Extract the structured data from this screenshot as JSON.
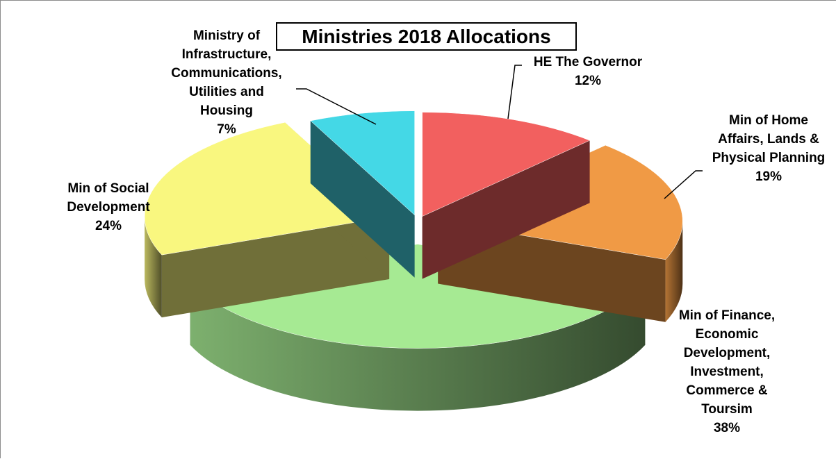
{
  "chart_data": {
    "type": "pie",
    "title": "Ministries 2018 Allocations",
    "slices": [
      {
        "key": "governor",
        "label": "HE The Governor",
        "value": 12,
        "percent_text": "12%",
        "color": "#f2605f"
      },
      {
        "key": "home",
        "label": "Min of Home Affairs, Lands & Physical Planning",
        "value": 19,
        "percent_text": "19%",
        "color": "#f09a45"
      },
      {
        "key": "finance",
        "label": "Min of Finance, Economic Development, Investment, Commerce & Toursim",
        "value": 38,
        "percent_text": "38%",
        "color": "#a6ea93"
      },
      {
        "key": "social",
        "label": "Min of Social Development",
        "value": 24,
        "percent_text": "24%",
        "color": "#f9f77f"
      },
      {
        "key": "infra",
        "label": "Ministry of Infrastructure, Communications, Utilities and Housing",
        "value": 7,
        "percent_text": "7%",
        "color": "#44d8e6"
      }
    ]
  },
  "labels": {
    "governor": [
      "HE The Governor",
      "12%"
    ],
    "home": [
      "Min of Home",
      "Affairs, Lands &",
      "Physical Planning",
      "19%"
    ],
    "finance": [
      "Min of Finance,",
      "Economic",
      "Development,",
      "Investment,",
      "Commerce &",
      "Toursim",
      "38%"
    ],
    "social": [
      "Min of Social",
      "Development",
      "24%"
    ],
    "infra": [
      "Ministry of",
      "Infrastructure,",
      "Communications,",
      "Utilities and",
      "Housing",
      "7%"
    ]
  }
}
